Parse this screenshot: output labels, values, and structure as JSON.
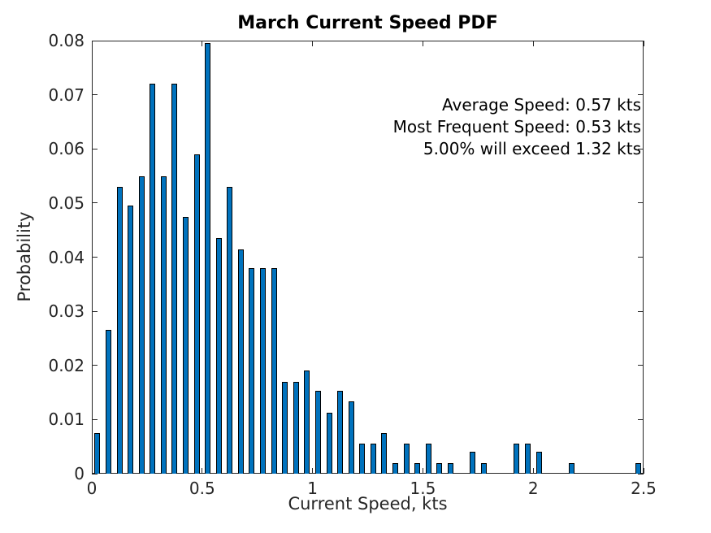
{
  "chart_data": {
    "type": "bar",
    "title": "March Current Speed PDF",
    "xlabel": "Current Speed, kts",
    "ylabel": "Probability",
    "xlim": [
      0,
      2.5
    ],
    "ylim": [
      0,
      0.08
    ],
    "bin_width": 0.05,
    "grid": false,
    "legend": "none",
    "bar_color": "#0072BD",
    "bar_edge_color": "#000000",
    "axis_color": "#262626",
    "x_ticks": [
      {
        "value": 0,
        "label": "0"
      },
      {
        "value": 0.5,
        "label": "0.5"
      },
      {
        "value": 1,
        "label": "1"
      },
      {
        "value": 1.5,
        "label": "1.5"
      },
      {
        "value": 2,
        "label": "2"
      },
      {
        "value": 2.5,
        "label": "2.5"
      }
    ],
    "y_ticks": [
      {
        "value": 0,
        "label": "0"
      },
      {
        "value": 0.01,
        "label": "0.01"
      },
      {
        "value": 0.02,
        "label": "0.02"
      },
      {
        "value": 0.03,
        "label": "0.03"
      },
      {
        "value": 0.04,
        "label": "0.04"
      },
      {
        "value": 0.05,
        "label": "0.05"
      },
      {
        "value": 0.06,
        "label": "0.06"
      },
      {
        "value": 0.07,
        "label": "0.07"
      },
      {
        "value": 0.08,
        "label": "0.08"
      }
    ],
    "x": [
      0.025,
      0.075,
      0.125,
      0.175,
      0.225,
      0.275,
      0.325,
      0.375,
      0.425,
      0.475,
      0.525,
      0.575,
      0.625,
      0.675,
      0.725,
      0.775,
      0.825,
      0.875,
      0.925,
      0.975,
      1.025,
      1.075,
      1.125,
      1.175,
      1.225,
      1.275,
      1.325,
      1.375,
      1.425,
      1.475,
      1.525,
      1.575,
      1.625,
      1.675,
      1.725,
      1.775,
      1.825,
      1.875,
      1.925,
      1.975,
      2.025,
      2.075,
      2.125,
      2.175,
      2.225,
      2.275,
      2.325,
      2.375,
      2.425,
      2.475
    ],
    "values": [
      0.0075,
      0.0265,
      0.053,
      0.0495,
      0.055,
      0.072,
      0.055,
      0.072,
      0.0475,
      0.059,
      0.0795,
      0.0435,
      0.053,
      0.0415,
      0.038,
      0.038,
      0.038,
      0.017,
      0.017,
      0.019,
      0.0153,
      0.0113,
      0.0153,
      0.0133,
      0.0055,
      0.0055,
      0.0075,
      0.002,
      0.0055,
      0.002,
      0.0055,
      0.002,
      0.002,
      0,
      0.004,
      0.002,
      0,
      0,
      0.0055,
      0.0055,
      0.004,
      0,
      0,
      0.002,
      0,
      0,
      0,
      0,
      0,
      0.002
    ],
    "annotations": [
      "Average Speed: 0.57 kts",
      "Most Frequent Speed: 0.53 kts",
      "5.00% will exceed 1.32 kts"
    ],
    "stats": {
      "average_speed_kts": 0.57,
      "most_frequent_speed_kts": 0.53,
      "exceedance_5_percent_kts": 1.32
    }
  }
}
